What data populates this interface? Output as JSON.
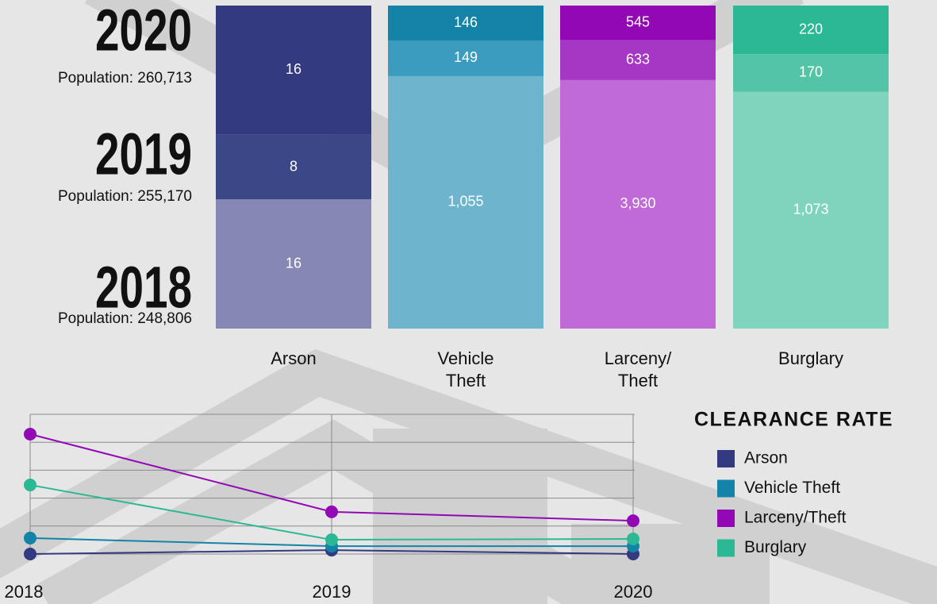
{
  "chart_data": [
    {
      "type": "bar",
      "stacked": true,
      "categories": [
        "Arson",
        "Vehicle Theft",
        "Larceny/Theft",
        "Burglary"
      ],
      "series": [
        {
          "name": "2018",
          "population": "Population: 248,806",
          "colors": [
            "#8787b5",
            "#6fb4cd",
            "#bf6ad6",
            "#7fd4bd"
          ],
          "values": [
            16,
            1055,
            3930,
            1073
          ],
          "value_labels": [
            "16",
            "1,055",
            "3,930",
            "1,073"
          ]
        },
        {
          "name": "2019",
          "population": "Population: 255,170",
          "colors": [
            "#3b4787",
            "#3b9cc0",
            "#a637c4",
            "#53c5a6"
          ],
          "values": [
            8,
            149,
            633,
            170
          ],
          "value_labels": [
            "8",
            "149",
            "633",
            "170"
          ]
        },
        {
          "name": "2020",
          "population": "Population: 260,713",
          "colors": [
            "#343a80",
            "#1384a8",
            "#9208b5",
            "#2bb894"
          ],
          "values": [
            16,
            146,
            545,
            220
          ],
          "value_labels": [
            "16",
            "146",
            "545",
            "220"
          ]
        }
      ]
    },
    {
      "type": "line",
      "title": "CLEARANCE RATE",
      "x": [
        "2018",
        "2019",
        "2020"
      ],
      "series": [
        {
          "name": "Arson",
          "color": "#343a80",
          "values": [
            0,
            1.4,
            0
          ]
        },
        {
          "name": "Vehicle Theft",
          "color": "#1384a8",
          "values": [
            5.7,
            2.8,
            2.8
          ]
        },
        {
          "name": "Larceny/Theft",
          "color": "#9208b5",
          "values": [
            42.9,
            15.1,
            11.9
          ]
        },
        {
          "name": "Burglary",
          "color": "#2bb894",
          "values": [
            24.7,
            5.1,
            5.4
          ]
        }
      ],
      "ylim": [
        0,
        50
      ],
      "yticks": [
        0,
        10,
        20,
        30,
        40,
        50
      ],
      "grid": true,
      "legend": "right"
    }
  ]
}
